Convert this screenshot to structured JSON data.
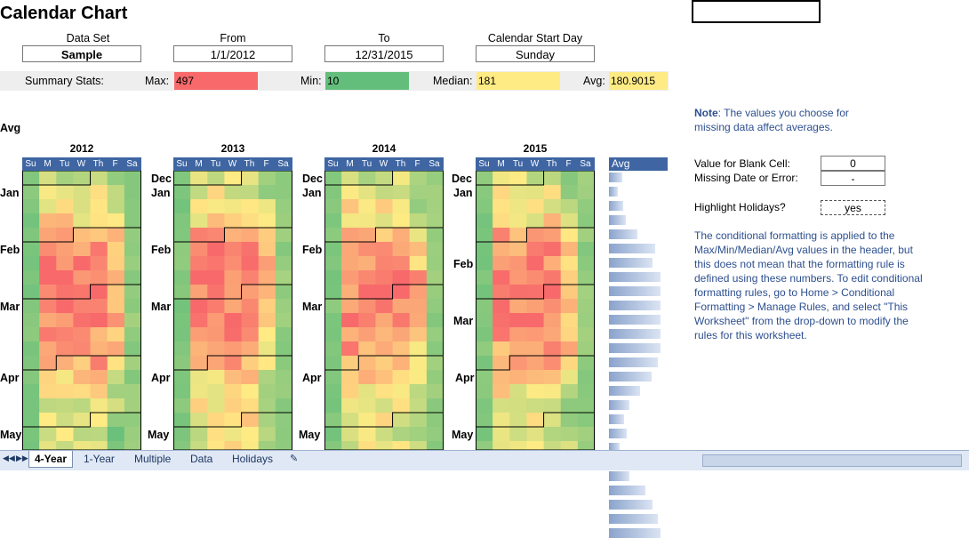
{
  "title": "Calendar Chart",
  "controls": {
    "dataset_label": "Data Set",
    "dataset_value": "Sample",
    "from_label": "From",
    "from_value": "1/1/2012",
    "to_label": "To",
    "to_value": "12/31/2015",
    "start_label": "Calendar Start Day",
    "start_value": "Sunday"
  },
  "summary": {
    "label": "Summary Stats:",
    "max_label": "Max:",
    "max_value": "497",
    "min_label": "Min:",
    "min_value": "10",
    "median_label": "Median:",
    "median_value": "181",
    "avg_label": "Avg:",
    "avg_value": "180.9015"
  },
  "colors": {
    "max": "#f8696b",
    "min": "#63be7b",
    "median": "#ffeb84",
    "avg": "#ffeb84",
    "header": "#3f66a3"
  },
  "avg_row_label": "Avg",
  "years": [
    "2012",
    "2013",
    "2014",
    "2015"
  ],
  "dow": [
    "Su",
    "M",
    "Tu",
    "W",
    "Th",
    "F",
    "Sa"
  ],
  "months": {
    "y2012": [
      "Jan",
      "Feb",
      "Mar",
      "Apr",
      "May"
    ],
    "y2013": [
      "Dec",
      "Jan",
      "Feb",
      "Mar",
      "Apr",
      "May"
    ],
    "y2014": [
      "Dec",
      "Jan",
      "Feb",
      "Mar",
      "Apr",
      "May"
    ],
    "y2015": [
      "Dec",
      "Jan",
      "Feb",
      "Mar",
      "Apr",
      "May"
    ]
  },
  "avg_header": "Avg",
  "avg_series": [
    0.25,
    0.18,
    0.28,
    0.32,
    0.55,
    0.9,
    0.85,
    1.0,
    1.0,
    1.0,
    1.0,
    1.0,
    1.0,
    0.95,
    0.82,
    0.6,
    0.4,
    0.3,
    0.35,
    0.2,
    0.3,
    0.4,
    0.7,
    0.85,
    0.95,
    1.0
  ],
  "right": {
    "note_label": "Note",
    "note_text": ": The values you choose for missing data affect averages.",
    "blank_label": "Value for Blank Cell:",
    "blank_value": "0",
    "missing_label": "Missing Date or Error:",
    "missing_value": "-",
    "holidays_label": "Highlight Holidays?",
    "holidays_value": "yes",
    "cf_text": "The conditional formatting is applied to the Max/Min/Median/Avg values in the header, but this does not mean that the formatting rule is defined using these numbers. To edit conditional formatting rules, go to Home > Conditional Formatting > Manage Rules, and select \"This Worksheet\" from the drop-down to modify the rules for this worksheet."
  },
  "tabs": [
    "4-Year",
    "1-Year",
    "Multiple",
    "Data",
    "Holidays"
  ]
}
